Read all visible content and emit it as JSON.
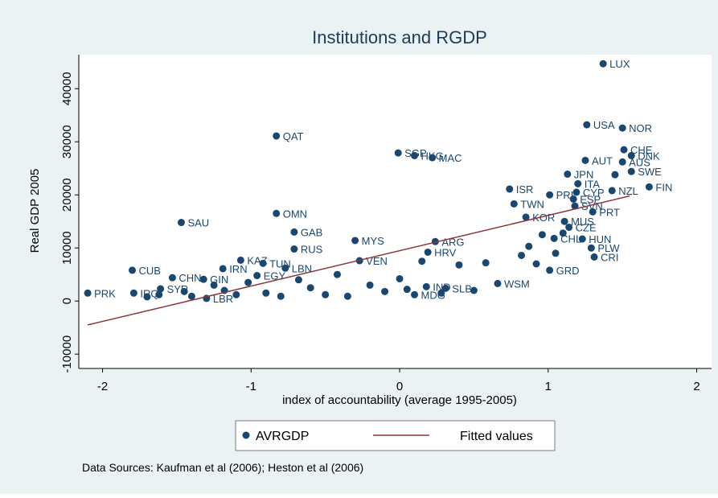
{
  "chart_data": {
    "type": "scatter",
    "title": "Institutions and RGDP",
    "x_label": "index of accountability (average 1995-2005)",
    "y_label": "Real GDP 2005",
    "xlim": [
      -2.16,
      2.1
    ],
    "ylim": [
      -12700,
      46400
    ],
    "xticks": [
      -2,
      -1,
      0,
      1,
      2
    ],
    "yticks": [
      -10000,
      0,
      10000,
      20000,
      30000,
      40000
    ],
    "series": [
      {
        "name": "AVRGDP",
        "color": "#1a476f",
        "labels": [
          "LUX",
          "USA",
          "NOR",
          "QAT",
          "SGP",
          "HKG",
          "MAC",
          "CHE",
          "AUT",
          "DNK",
          "AUS",
          "SWE",
          "JPN",
          "ITA",
          "ISR",
          "CYP",
          "ESP",
          "FIN",
          "NZL",
          "PRT",
          "TWN",
          "SVN",
          "PRI",
          "KOR",
          "MUS",
          "CZE",
          "SAU",
          "OMN",
          "GAB",
          "RUS",
          "MYS",
          "ARG",
          "HUN",
          "CHL",
          "KAZ",
          "TUN",
          "IRN",
          "CUB",
          "CHN",
          "GIN",
          "EGY",
          "LBN",
          "VEN",
          "HRV",
          "GRD",
          "CRI",
          "PLW",
          "WSM",
          "SLB",
          "IND",
          "MDG",
          "PRK",
          "IRQ",
          "SYR",
          "LBR",
          null,
          null,
          null,
          null,
          null,
          null,
          null,
          null,
          null,
          null,
          null,
          null,
          null,
          null,
          null,
          null,
          null,
          null,
          null,
          null,
          null,
          null,
          null,
          null,
          null,
          null,
          null,
          null,
          null,
          null
        ],
        "x": [
          1.37,
          1.26,
          1.5,
          -0.83,
          -0.01,
          0.1,
          0.22,
          1.51,
          1.25,
          1.56,
          1.5,
          1.56,
          1.13,
          1.2,
          0.74,
          1.19,
          1.17,
          1.68,
          1.43,
          1.3,
          0.77,
          1.18,
          1.01,
          0.85,
          1.11,
          1.14,
          -1.47,
          -0.83,
          -0.71,
          -0.71,
          -0.3,
          0.24,
          1.23,
          1.04,
          -1.07,
          -0.92,
          -1.19,
          -1.8,
          -1.53,
          -1.32,
          -0.96,
          -0.77,
          -0.27,
          0.19,
          1.01,
          1.31,
          1.29,
          0.66,
          0.31,
          0.18,
          0.1,
          -2.1,
          -1.79,
          -1.61,
          -1.3,
          -1.7,
          -1.62,
          -1.45,
          -1.4,
          -1.25,
          -1.18,
          -1.1,
          -1.02,
          -0.9,
          -0.8,
          -0.68,
          -0.6,
          -0.5,
          -0.42,
          -0.35,
          -0.2,
          -0.1,
          0.0,
          0.05,
          0.15,
          0.28,
          0.4,
          0.5,
          0.58,
          0.82,
          0.87,
          0.92,
          0.96,
          1.05,
          1.1,
          1.45
        ],
        "values": [
          44700,
          33200,
          32600,
          31100,
          27900,
          27400,
          27000,
          28500,
          26500,
          27400,
          26200,
          24400,
          23900,
          22100,
          21100,
          20500,
          19200,
          21500,
          20800,
          16800,
          18300,
          17900,
          20000,
          15800,
          15000,
          13900,
          14800,
          16500,
          13000,
          9800,
          11400,
          11200,
          11700,
          11800,
          7700,
          7100,
          6100,
          5800,
          4400,
          4100,
          4800,
          6200,
          7600,
          9200,
          5800,
          8300,
          10000,
          3300,
          2400,
          2700,
          1200,
          1500,
          1500,
          2300,
          500,
          800,
          1200,
          1800,
          900,
          3000,
          2000,
          1200,
          3500,
          1500,
          900,
          4000,
          2500,
          1200,
          5000,
          900,
          3000,
          1800,
          4200,
          2200,
          7500,
          1500,
          6800,
          2000,
          7200,
          8600,
          10300,
          7000,
          12500,
          9000,
          12800,
          23800
        ]
      },
      {
        "name": "Fitted values",
        "color": "#90353b",
        "x": [
          -2.1,
          1.55
        ],
        "values": [
          -4500,
          19800
        ]
      }
    ],
    "legend_position": "bottom",
    "note": "Data Sources: Kaufman et al (2006); Heston et al (2006)"
  }
}
